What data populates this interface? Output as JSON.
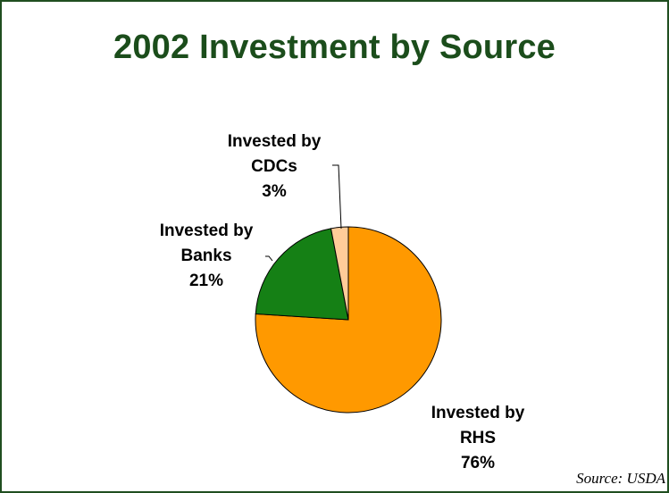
{
  "slide": {
    "title": "2002 Investment by Source",
    "source_note": "Source:  USDA"
  },
  "chart_data": {
    "type": "pie",
    "title": "2002 Investment by Source",
    "categories": [
      "Invested by RHS",
      "Invested by Banks",
      "Invested by CDCs"
    ],
    "values": [
      76,
      21,
      3
    ],
    "unit": "%",
    "slices": [
      {
        "name": "Invested by RHS",
        "line1": "Invested by",
        "line2": "RHS",
        "percent_label": "76%",
        "value": 76,
        "color": "#ff9900"
      },
      {
        "name": "Invested by Banks",
        "line1": "Invested by",
        "line2": "Banks",
        "percent_label": "21%",
        "value": 21,
        "color": "#158015"
      },
      {
        "name": "Invested by CDCs",
        "line1": "Invested by",
        "line2": "CDCs",
        "percent_label": "3%",
        "value": 3,
        "color": "#ffcc99"
      }
    ]
  }
}
